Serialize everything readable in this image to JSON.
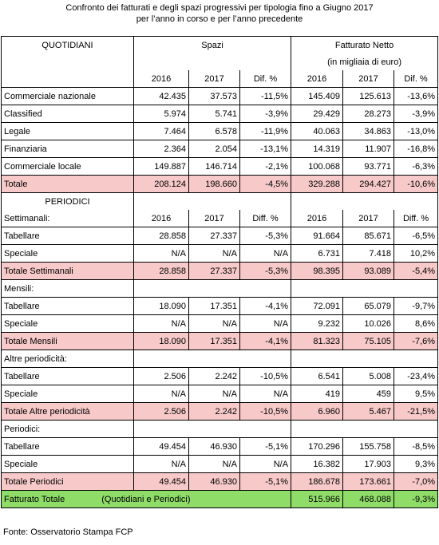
{
  "title_line1": "Confronto dei fatturati e degli spazi progressivi per tipologia fino a Giugno 2017",
  "title_line2": "per l’anno in corso e per l’anno precedente",
  "header": {
    "quotidiani": "QUOTIDIANI",
    "spazi": "Spazi",
    "fatturato": "Fatturato Netto",
    "fatturato_sub": "(in migliaia di euro)",
    "y1": "2016",
    "y2": "2017",
    "dif": "Dif. %",
    "diff": "Diff. %"
  },
  "quotidiani_rows": [
    {
      "label": "Commerciale nazionale",
      "s16": "42.435",
      "s17": "37.573",
      "sd": "-11,5%",
      "f16": "145.409",
      "f17": "125.613",
      "fd": "-13,6%"
    },
    {
      "label": "Classified",
      "s16": "5.974",
      "s17": "5.741",
      "sd": "-3,9%",
      "f16": "29.429",
      "f17": "28.273",
      "fd": "-3,9%"
    },
    {
      "label": "Legale",
      "s16": "7.464",
      "s17": "6.578",
      "sd": "-11,9%",
      "f16": "40.063",
      "f17": "34.863",
      "fd": "-13,0%"
    },
    {
      "label": "Finanziaria",
      "s16": "2.364",
      "s17": "2.054",
      "sd": "-13,1%",
      "f16": "14.319",
      "f17": "11.907",
      "fd": "-16,8%"
    },
    {
      "label": "Commerciale locale",
      "s16": "149.887",
      "s17": "146.714",
      "sd": "-2,1%",
      "f16": "100.068",
      "f17": "93.771",
      "fd": "-6,3%"
    }
  ],
  "totale": {
    "label": "Totale",
    "s16": "208.124",
    "s17": "198.660",
    "sd": "-4,5%",
    "f16": "329.288",
    "f17": "294.427",
    "fd": "-10,6%"
  },
  "periodici_label": "PERIODICI",
  "groups": [
    {
      "name": "Settimanali:",
      "rows": [
        {
          "label": "Tabellare",
          "s16": "28.858",
          "s17": "27.337",
          "sd": "-5,3%",
          "f16": "91.664",
          "f17": "85.671",
          "fd": "-6,5%"
        },
        {
          "label": "Speciale",
          "s16": "N/A",
          "s17": "N/A",
          "sd": "N/A",
          "f16": "6.731",
          "f17": "7.418",
          "fd": "10,2%"
        }
      ],
      "total": {
        "label": "Totale Settimanali",
        "s16": "28.858",
        "s17": "27.337",
        "sd": "-5,3%",
        "f16": "98.395",
        "f17": "93.089",
        "fd": "-5,4%"
      }
    },
    {
      "name": "Mensili:",
      "rows": [
        {
          "label": "Tabellare",
          "s16": "18.090",
          "s17": "17.351",
          "sd": "-4,1%",
          "f16": "72.091",
          "f17": "65.079",
          "fd": "-9,7%"
        },
        {
          "label": "Speciale",
          "s16": "N/A",
          "s17": "N/A",
          "sd": "N/A",
          "f16": "9.232",
          "f17": "10.026",
          "fd": "8,6%"
        }
      ],
      "total": {
        "label": "Totale Mensili",
        "s16": "18.090",
        "s17": "17.351",
        "sd": "-4,1%",
        "f16": "81.323",
        "f17": "75.105",
        "fd": "-7,6%"
      }
    },
    {
      "name": "Altre periodicità:",
      "rows": [
        {
          "label": "Tabellare",
          "s16": "2.506",
          "s17": "2.242",
          "sd": "-10,5%",
          "f16": "6.541",
          "f17": "5.008",
          "fd": "-23,4%"
        },
        {
          "label": "Speciale",
          "s16": "N/A",
          "s17": "N/A",
          "sd": "N/A",
          "f16": "419",
          "f17": "459",
          "fd": "9,5%"
        }
      ],
      "total": {
        "label": "Totale Altre periodicità",
        "s16": "2.506",
        "s17": "2.242",
        "sd": "-10,5%",
        "f16": "6.960",
        "f17": "5.467",
        "fd": "-21,5%"
      }
    },
    {
      "name": "Periodici:",
      "rows": [
        {
          "label": "Tabellare",
          "s16": "49.454",
          "s17": "46.930",
          "sd": "-5,1%",
          "f16": "170.296",
          "f17": "155.758",
          "fd": "-8,5%"
        },
        {
          "label": "Speciale",
          "s16": "N/A",
          "s17": "N/A",
          "sd": "N/A",
          "f16": "16.382",
          "f17": "17.903",
          "fd": "9,3%"
        }
      ],
      "total": {
        "label": "Totale Periodici",
        "s16": "49.454",
        "s17": "46.930",
        "sd": "-5,1%",
        "f16": "186.678",
        "f17": "173.661",
        "fd": "-7,0%"
      }
    }
  ],
  "grand_total": {
    "label": "Fatturato Totale",
    "note": "(Quotidiani e Periodici)",
    "f16": "515.966",
    "f17": "468.088",
    "fd": "-9,3%"
  },
  "footer": "Fonte: Osservatorio Stampa FCP",
  "colors": {
    "total_row_bg": "#f7c9c9",
    "grand_total_bg": "#8fdc69"
  }
}
